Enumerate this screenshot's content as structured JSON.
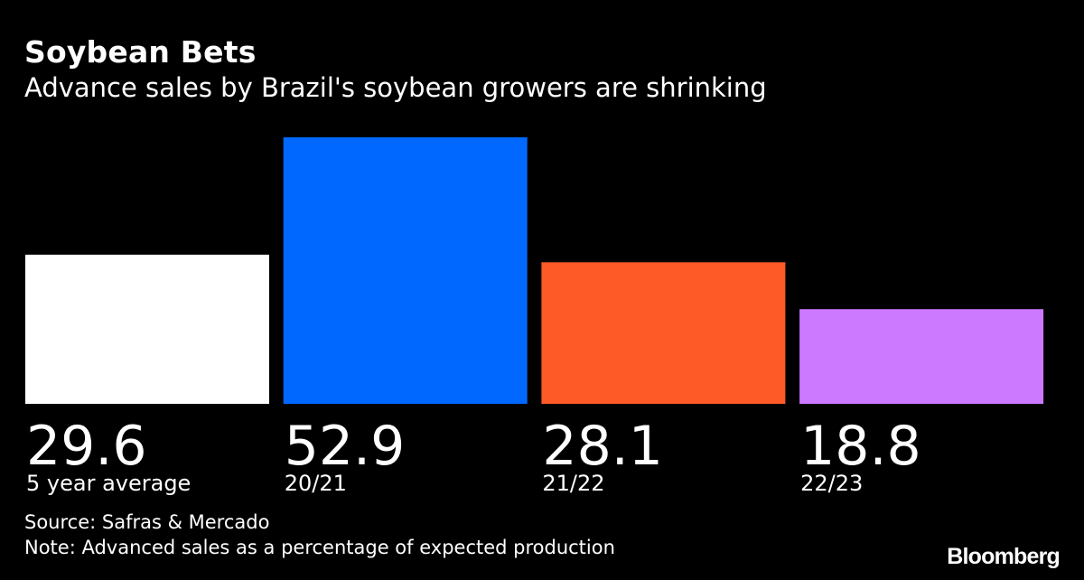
{
  "header": {
    "title": "Soybean Bets",
    "subtitle": "Advance sales by Brazil's soybean growers are shrinking"
  },
  "chart_data": {
    "type": "bar",
    "title": "Soybean Bets",
    "subtitle": "Advance sales by Brazil's soybean growers are shrinking",
    "categories": [
      "5 year average",
      "20/21",
      "21/22",
      "22/23"
    ],
    "values": [
      29.6,
      52.9,
      28.1,
      18.8
    ],
    "value_labels": [
      "29.6",
      "52.9",
      "28.1",
      "18.8"
    ],
    "colors": [
      "#ffffff",
      "#0068ff",
      "#fe5a28",
      "#cc78ff"
    ],
    "ylim": [
      0,
      52.9
    ],
    "grid": false,
    "legend": "none"
  },
  "footer": {
    "source": "Source: Safras & Mercado",
    "note": "Note: Advanced sales as a percentage of expected production",
    "brand": "Bloomberg"
  }
}
